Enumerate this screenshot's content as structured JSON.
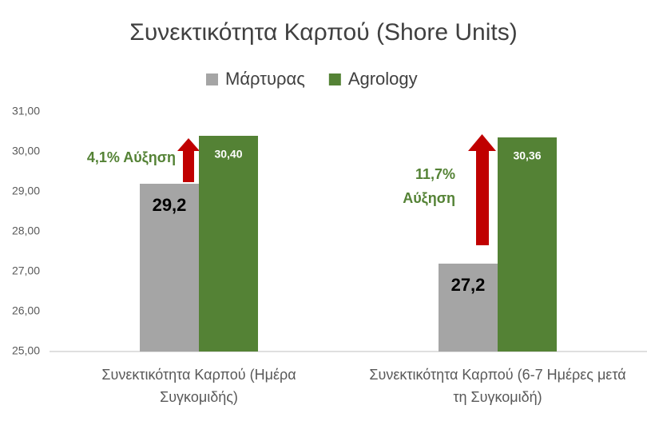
{
  "chart_data": {
    "type": "bar",
    "title": "Συνεκτικότητα Καρπού (Shore Units)",
    "categories": [
      "Συνεκτικότητα Καρπού (Ημέρα Συγκομιδής)",
      "Συνεκτικότητα Καρπού (6-7 Ημέρες μετά τη Συγκομιδή)"
    ],
    "series": [
      {
        "name": "Μάρτυρας",
        "color": "#a5a5a5",
        "values": [
          29.2,
          27.2
        ],
        "value_labels": [
          "29,2",
          "27,2"
        ]
      },
      {
        "name": "Agrology",
        "color": "#548235",
        "values": [
          30.4,
          30.36
        ],
        "value_labels": [
          "30,40",
          "30,36"
        ]
      }
    ],
    "ylim": [
      25,
      31
    ],
    "yticks": [
      {
        "value": 25,
        "label": "25,00"
      },
      {
        "value": 26,
        "label": "26,00"
      },
      {
        "value": 27,
        "label": "27,00"
      },
      {
        "value": 28,
        "label": "28,00"
      },
      {
        "value": 29,
        "label": "29,00"
      },
      {
        "value": 30,
        "label": "30,00"
      },
      {
        "value": 31,
        "label": "31,00"
      }
    ],
    "grid": false,
    "legend": "top",
    "annotations": [
      "4,1% Αύξηση",
      "11,7% Αύξηση"
    ]
  }
}
